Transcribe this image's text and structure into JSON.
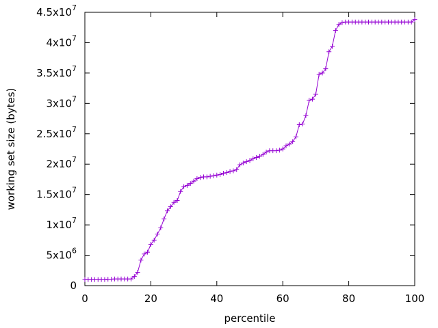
{
  "chart_data": {
    "type": "line",
    "title": "",
    "xlabel": "percentile",
    "ylabel": "working set size (bytes)",
    "xlim": [
      0,
      100
    ],
    "ylim": [
      0,
      45000000
    ],
    "grid": false,
    "legend": "none",
    "marker": "plus",
    "color": "#9400d3",
    "x_ticks": [
      {
        "value": 0,
        "label": "0"
      },
      {
        "value": 20,
        "label": "20"
      },
      {
        "value": 40,
        "label": "40"
      },
      {
        "value": 60,
        "label": "60"
      },
      {
        "value": 80,
        "label": "80"
      },
      {
        "value": 100,
        "label": "100"
      }
    ],
    "y_ticks": [
      {
        "value": 0,
        "mantissa": "0",
        "exp": ""
      },
      {
        "value": 5000000,
        "mantissa": "5x10",
        "exp": "6"
      },
      {
        "value": 10000000,
        "mantissa": "1x10",
        "exp": "7"
      },
      {
        "value": 15000000,
        "mantissa": "1.5x10",
        "exp": "7"
      },
      {
        "value": 20000000,
        "mantissa": "2x10",
        "exp": "7"
      },
      {
        "value": 25000000,
        "mantissa": "2.5x10",
        "exp": "7"
      },
      {
        "value": 30000000,
        "mantissa": "3x10",
        "exp": "7"
      },
      {
        "value": 35000000,
        "mantissa": "3.5x10",
        "exp": "7"
      },
      {
        "value": 40000000,
        "mantissa": "4x10",
        "exp": "7"
      },
      {
        "value": 45000000,
        "mantissa": "4.5x10",
        "exp": "7"
      }
    ],
    "x": [
      0,
      1,
      2,
      3,
      4,
      5,
      6,
      7,
      8,
      9,
      10,
      11,
      12,
      13,
      14,
      15,
      16,
      17,
      18,
      19,
      20,
      21,
      22,
      23,
      24,
      25,
      26,
      27,
      28,
      29,
      30,
      31,
      32,
      33,
      34,
      35,
      36,
      37,
      38,
      39,
      40,
      41,
      42,
      43,
      44,
      45,
      46,
      47,
      48,
      49,
      50,
      51,
      52,
      53,
      54,
      55,
      56,
      57,
      58,
      59,
      60,
      61,
      62,
      63,
      64,
      65,
      66,
      67,
      68,
      69,
      70,
      71,
      72,
      73,
      74,
      75,
      76,
      77,
      78,
      79,
      80,
      81,
      82,
      83,
      84,
      85,
      86,
      87,
      88,
      89,
      90,
      91,
      92,
      93,
      94,
      95,
      96,
      97,
      98,
      99,
      100
    ],
    "values": [
      1000000,
      1000000,
      1000000,
      1000000,
      1000000,
      1000000,
      1000000,
      1050000,
      1050000,
      1100000,
      1100000,
      1100000,
      1100000,
      1100000,
      1100000,
      1500000,
      2200000,
      4200000,
      5200000,
      5500000,
      6800000,
      7500000,
      8500000,
      9500000,
      11000000,
      12300000,
      13000000,
      13700000,
      14000000,
      15500000,
      16300000,
      16500000,
      16800000,
      17200000,
      17600000,
      17800000,
      17900000,
      17900000,
      18000000,
      18100000,
      18200000,
      18300000,
      18500000,
      18600000,
      18800000,
      18900000,
      19100000,
      19900000,
      20200000,
      20400000,
      20600000,
      20900000,
      21100000,
      21300000,
      21600000,
      22000000,
      22200000,
      22200000,
      22200000,
      22300000,
      22500000,
      23000000,
      23300000,
      23700000,
      24500000,
      26500000,
      26600000,
      28000000,
      30500000,
      30700000,
      31500000,
      34800000,
      35000000,
      35700000,
      38500000,
      39400000,
      42000000,
      43000000,
      43300000,
      43400000,
      43400000,
      43400000,
      43400000,
      43400000,
      43400000,
      43400000,
      43400000,
      43400000,
      43400000,
      43400000,
      43400000,
      43400000,
      43400000,
      43400000,
      43400000,
      43400000,
      43400000,
      43400000,
      43400000,
      43400000,
      43800000
    ]
  }
}
